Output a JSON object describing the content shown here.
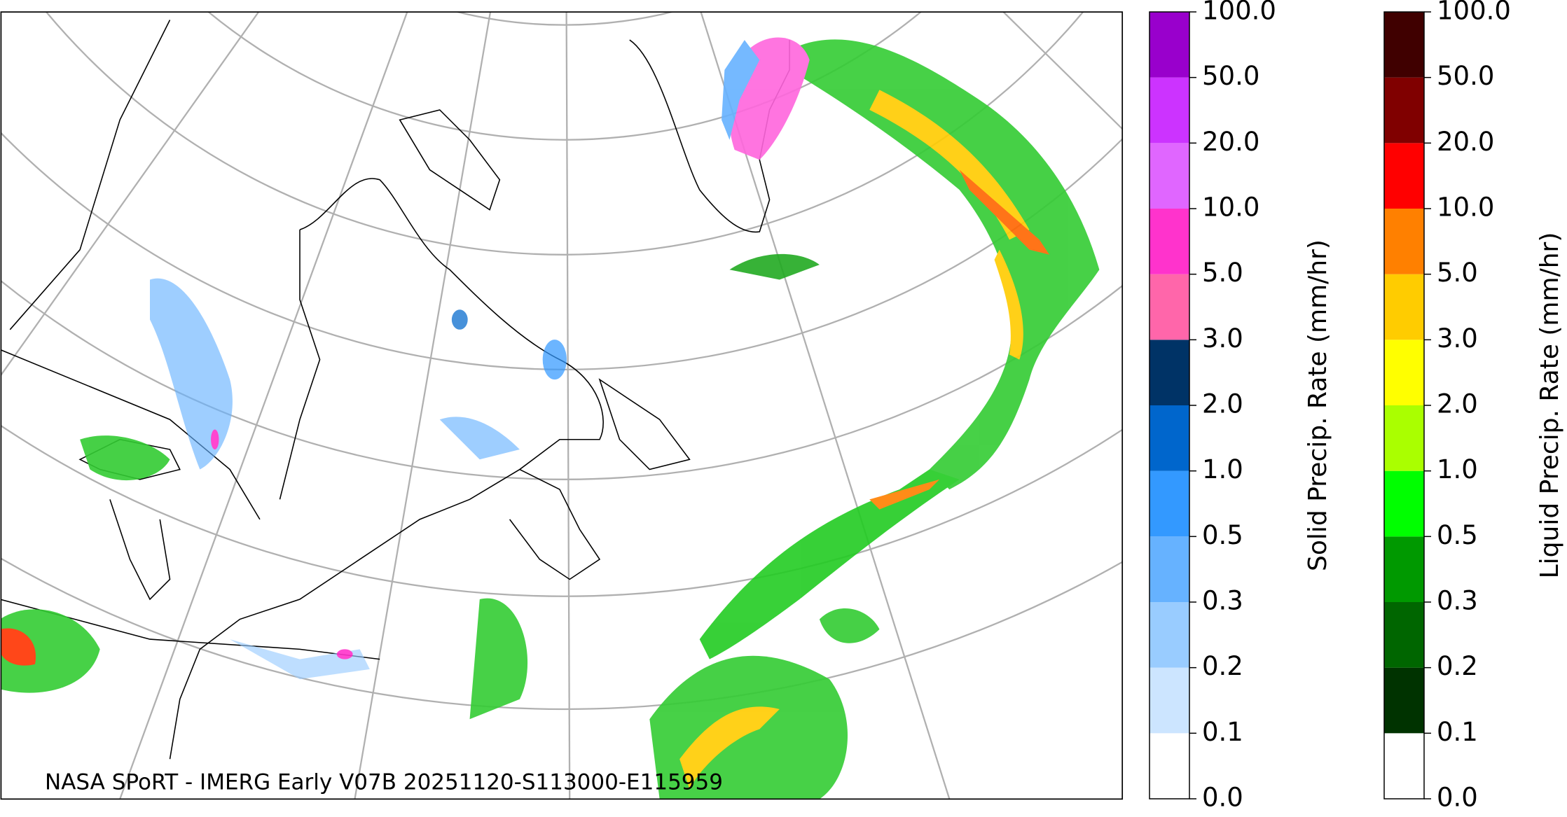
{
  "caption": "NASA SPoRT - IMERG Early V07B 20251120-S113000-E115959",
  "colorbars": [
    {
      "label": "Solid Precip. Rate (mm/hr)",
      "ticks": [
        {
          "value": 0,
          "label": "0.0"
        },
        0.1,
        0.2,
        0.3,
        0.5,
        {
          "value": 1,
          "label": "1.0"
        },
        {
          "value": 2,
          "label": "2.0"
        },
        {
          "value": 3,
          "label": "3.0"
        },
        {
          "value": 5,
          "label": "5.0"
        },
        {
          "value": 10,
          "label": "10.0"
        },
        {
          "value": 20,
          "label": "20.0"
        },
        {
          "value": 50,
          "label": "50.0"
        },
        {
          "value": 100,
          "label": "100.0"
        }
      ],
      "colors": [
        "#ffffff",
        "#cce5ff",
        "#99ccff",
        "#66b2ff",
        "#3399ff",
        "#0066cc",
        "#003366",
        "#ff66aa",
        "#ff33cc",
        "#e066ff",
        "#cc33ff",
        "#9900cc"
      ]
    },
    {
      "label": "Liquid Precip. Rate (mm/hr)",
      "ticks": [
        {
          "value": 0,
          "label": "0.0"
        },
        0.1,
        0.2,
        0.3,
        0.5,
        {
          "value": 1,
          "label": "1.0"
        },
        {
          "value": 2,
          "label": "2.0"
        },
        {
          "value": 3,
          "label": "3.0"
        },
        {
          "value": 5,
          "label": "5.0"
        },
        {
          "value": 10,
          "label": "10.0"
        },
        {
          "value": 20,
          "label": "20.0"
        },
        {
          "value": 50,
          "label": "50.0"
        },
        {
          "value": 100,
          "label": "100.0"
        }
      ],
      "colors": [
        "#ffffff",
        "#003300",
        "#006600",
        "#009900",
        "#00ff00",
        "#aaff00",
        "#ffff00",
        "#ffcc00",
        "#ff8000",
        "#ff0000",
        "#800000",
        "#400000"
      ]
    }
  ]
}
